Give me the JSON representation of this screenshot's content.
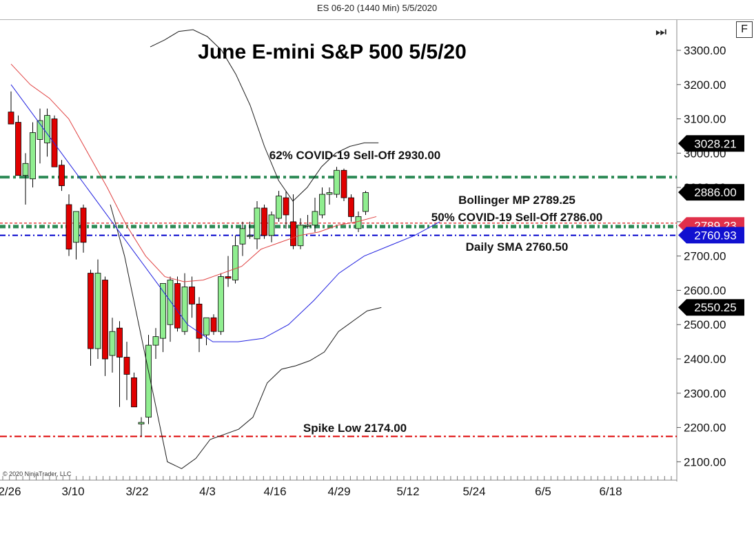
{
  "window": {
    "title": "ES 06-20 (1440 Min)  5/5/2020"
  },
  "toolbar": {
    "format_button": "F",
    "scroll_end_icon": "skip-end-icon"
  },
  "copyright": "© 2020 NinjaTrader, LLC",
  "colors": {
    "bull_candle": "#90ee90",
    "bear_candle": "#e00000",
    "bollinger_upper_lower": "#000000",
    "sma_line": "#2020e0",
    "bollinger_mid": "#e04040",
    "fib_line": "#2e8b57",
    "sma_level": "#0000cc",
    "spike_low": "#dd0000"
  },
  "chart_data": {
    "type": "candlestick",
    "title": "June E-mini S&P 500 5/5/20",
    "ylim": [
      2040,
      3360
    ],
    "y_ticks": [
      2100,
      2200,
      2300,
      2400,
      2500,
      2600,
      2700,
      2800,
      2900,
      3000,
      3100,
      3200,
      3300
    ],
    "y_tick_labels": [
      "2100.00",
      "2200.00",
      "2300.00",
      "2400.00",
      "2500.00",
      "2600.00",
      "2700.00",
      "2800.00",
      "2900.00",
      "3000.00",
      "3100.00",
      "3200.00",
      "3300.00"
    ],
    "x_tick_labels": [
      "2/26",
      "3/10",
      "3/22",
      "4/3",
      "4/16",
      "4/29",
      "5/12",
      "5/24",
      "6/5",
      "6/18"
    ],
    "candles": [
      {
        "o": 3120,
        "h": 3180,
        "l": 3090,
        "c": 3085
      },
      {
        "o": 3090,
        "h": 3110,
        "l": 2935,
        "c": 2935
      },
      {
        "o": 2935,
        "h": 3000,
        "l": 2850,
        "c": 2970
      },
      {
        "o": 2925,
        "h": 3090,
        "l": 2900,
        "c": 3060
      },
      {
        "o": 3040,
        "h": 3130,
        "l": 2970,
        "c": 3095
      },
      {
        "o": 3030,
        "h": 3130,
        "l": 2990,
        "c": 3110
      },
      {
        "o": 3100,
        "h": 3110,
        "l": 2960,
        "c": 2960
      },
      {
        "o": 2965,
        "h": 2980,
        "l": 2890,
        "c": 2905
      },
      {
        "o": 2850,
        "h": 2880,
        "l": 2700,
        "c": 2720
      },
      {
        "o": 2740,
        "h": 2830,
        "l": 2690,
        "c": 2830
      },
      {
        "o": 2840,
        "h": 2850,
        "l": 2710,
        "c": 2740
      },
      {
        "o": 2650,
        "h": 2660,
        "l": 2380,
        "c": 2430
      },
      {
        "o": 2430,
        "h": 2690,
        "l": 2400,
        "c": 2650
      },
      {
        "o": 2630,
        "h": 2640,
        "l": 2350,
        "c": 2400
      },
      {
        "o": 2410,
        "h": 2520,
        "l": 2360,
        "c": 2480
      },
      {
        "o": 2490,
        "h": 2510,
        "l": 2260,
        "c": 2405
      },
      {
        "o": 2405,
        "h": 2450,
        "l": 2280,
        "c": 2355
      },
      {
        "o": 2345,
        "h": 2360,
        "l": 2260,
        "c": 2260
      },
      {
        "o": 2210,
        "h": 2230,
        "l": 2174,
        "c": 2215
      },
      {
        "o": 2230,
        "h": 2470,
        "l": 2210,
        "c": 2440
      },
      {
        "o": 2440,
        "h": 2490,
        "l": 2400,
        "c": 2465
      },
      {
        "o": 2460,
        "h": 2620,
        "l": 2420,
        "c": 2620
      },
      {
        "o": 2500,
        "h": 2640,
        "l": 2450,
        "c": 2630
      },
      {
        "o": 2620,
        "h": 2640,
        "l": 2480,
        "c": 2490
      },
      {
        "o": 2480,
        "h": 2650,
        "l": 2470,
        "c": 2610
      },
      {
        "o": 2610,
        "h": 2640,
        "l": 2520,
        "c": 2560
      },
      {
        "o": 2560,
        "h": 2580,
        "l": 2420,
        "c": 2460
      },
      {
        "o": 2470,
        "h": 2520,
        "l": 2440,
        "c": 2520
      },
      {
        "o": 2520,
        "h": 2530,
        "l": 2470,
        "c": 2480
      },
      {
        "o": 2480,
        "h": 2650,
        "l": 2470,
        "c": 2640
      },
      {
        "o": 2640,
        "h": 2700,
        "l": 2610,
        "c": 2635
      },
      {
        "o": 2630,
        "h": 2760,
        "l": 2620,
        "c": 2730
      },
      {
        "o": 2735,
        "h": 2800,
        "l": 2700,
        "c": 2780
      },
      {
        "o": 2760,
        "h": 2800,
        "l": 2750,
        "c": 2760
      },
      {
        "o": 2750,
        "h": 2860,
        "l": 2720,
        "c": 2840
      },
      {
        "o": 2840,
        "h": 2850,
        "l": 2750,
        "c": 2760
      },
      {
        "o": 2760,
        "h": 2830,
        "l": 2740,
        "c": 2820
      },
      {
        "o": 2810,
        "h": 2890,
        "l": 2800,
        "c": 2875
      },
      {
        "o": 2870,
        "h": 2890,
        "l": 2780,
        "c": 2820
      },
      {
        "o": 2800,
        "h": 2880,
        "l": 2720,
        "c": 2730
      },
      {
        "o": 2730,
        "h": 2810,
        "l": 2720,
        "c": 2790
      },
      {
        "o": 2790,
        "h": 2820,
        "l": 2780,
        "c": 2790
      },
      {
        "o": 2790,
        "h": 2870,
        "l": 2770,
        "c": 2830
      },
      {
        "o": 2820,
        "h": 2900,
        "l": 2810,
        "c": 2880
      },
      {
        "o": 2880,
        "h": 2900,
        "l": 2850,
        "c": 2885
      },
      {
        "o": 2880,
        "h": 2960,
        "l": 2870,
        "c": 2950
      },
      {
        "o": 2950,
        "h": 2955,
        "l": 2860,
        "c": 2870
      },
      {
        "o": 2870,
        "h": 2880,
        "l": 2800,
        "c": 2815
      },
      {
        "o": 2780,
        "h": 2830,
        "l": 2770,
        "c": 2815
      },
      {
        "o": 2830,
        "h": 2890,
        "l": 2820,
        "c": 2885
      }
    ],
    "bollinger_upper": [
      3310,
      3330,
      3355,
      3360,
      3340,
      3300,
      3230,
      3140,
      3020,
      2920,
      2860,
      2900,
      2960,
      3000,
      3020,
      3030,
      3030
    ],
    "bollinger_mid": [
      3260,
      3200,
      3160,
      3100,
      3000,
      2900,
      2790,
      2700,
      2640,
      2625,
      2630,
      2650,
      2670,
      2720,
      2740,
      2760,
      2770,
      2790,
      2800,
      2815
    ],
    "bollinger_lower": [
      2850,
      2700,
      2500,
      2300,
      2100,
      2080,
      2110,
      2165,
      2180,
      2195,
      2230,
      2330,
      2370,
      2380,
      2395,
      2420,
      2480,
      2510,
      2540,
      2550
    ],
    "sma": [
      3200,
      3100,
      3000,
      2900,
      2800,
      2700,
      2600,
      2500,
      2450,
      2450,
      2460,
      2500,
      2570,
      2650,
      2700,
      2730,
      2760,
      2800
    ],
    "levels": [
      {
        "name": "62% COVID-19 Sell-Off",
        "value": 2930.0,
        "label": "62% COVID-19 Sell-Off 2930.00",
        "color": "#2e8b57"
      },
      {
        "name": "Bollinger MP",
        "value": 2789.25,
        "label": "Bollinger MP 2789.25",
        "color": "#e04040"
      },
      {
        "name": "50% COVID-19 Sell-Off",
        "value": 2786.0,
        "label": "50% COVID-19 Sell-Off 2786.00",
        "color": "#2e8b57"
      },
      {
        "name": "Daily SMA",
        "value": 2760.5,
        "label": "Daily SMA 2760.50",
        "color": "#0000cc"
      },
      {
        "name": "Spike Low",
        "value": 2174.0,
        "label": "Spike Low 2174.00",
        "color": "#dd0000"
      }
    ],
    "price_markers": [
      {
        "value": 3028.21,
        "label": "3028.21",
        "bg": "#000000",
        "fg": "#ffffff"
      },
      {
        "value": 2886.0,
        "label": "2886.00",
        "bg": "#000000",
        "fg": "#ffffff"
      },
      {
        "value": 2789.23,
        "label": "2789.23",
        "bg": "#e0304a",
        "fg": "#ffffff"
      },
      {
        "value": 2760.93,
        "label": "2760.93",
        "bg": "#1010d0",
        "fg": "#ffffff"
      },
      {
        "value": 2550.25,
        "label": "2550.25",
        "bg": "#000000",
        "fg": "#ffffff"
      }
    ]
  }
}
